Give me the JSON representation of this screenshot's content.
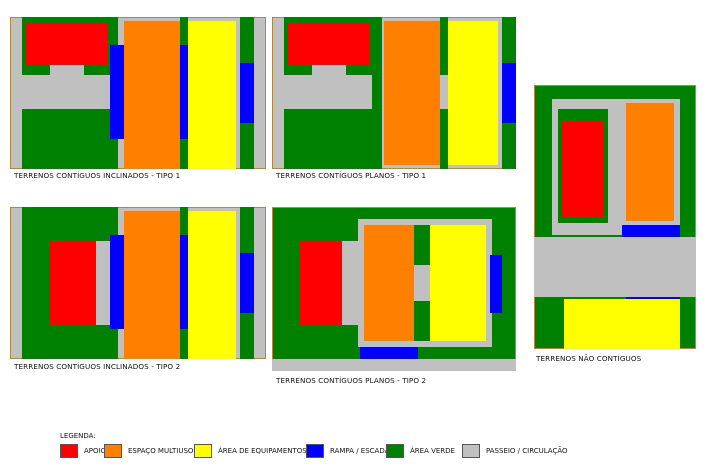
{
  "panels": {
    "p1": {
      "caption": "TERRENOS CONTÍGUOS INCLINADOS - TIPO 1"
    },
    "p2": {
      "caption": "TERRENOS CONTÍGUOS PLANOS - TIPO 1"
    },
    "p3": {
      "caption": "TERRENOS NÃO CONTÍGUOS"
    },
    "p4": {
      "caption": "TERRENOS CONTÍGUOS INCLINADOS - TIPO 2"
    },
    "p5": {
      "caption": "TERRENOS CONTÍGUOS PLANOS - TIPO 2"
    }
  },
  "legend": {
    "title": "LEGENDA:",
    "items": [
      {
        "label": "APOIO",
        "color": "#ff0000"
      },
      {
        "label": "ESPAÇO MULTIUSO",
        "color": "#ff8000"
      },
      {
        "label": "ÁREA DE EQUIPAMENTOS",
        "color": "#ffff00"
      },
      {
        "label": "RAMPA / ESCADA",
        "color": "#0000ff"
      },
      {
        "label": "ÁREA VERDE",
        "color": "#008000"
      },
      {
        "label": "PASSEIO / CIRCULAÇÃO",
        "color": "#c0c0c0"
      }
    ]
  }
}
